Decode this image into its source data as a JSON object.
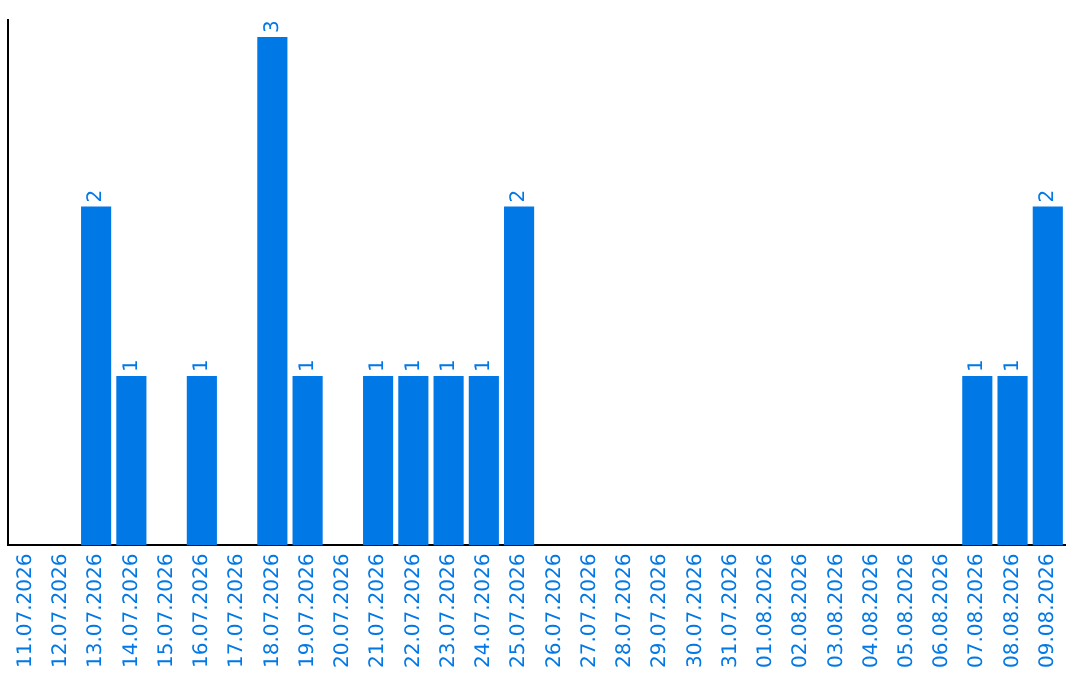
{
  "chart_data": {
    "type": "bar",
    "categories": [
      "11.07.2026",
      "12.07.2026",
      "13.07.2026",
      "14.07.2026",
      "15.07.2026",
      "16.07.2026",
      "17.07.2026",
      "18.07.2026",
      "19.07.2026",
      "20.07.2026",
      "21.07.2026",
      "22.07.2026",
      "23.07.2026",
      "24.07.2026",
      "25.07.2026",
      "26.07.2026",
      "27.07.2026",
      "28.07.2026",
      "29.07.2026",
      "30.07.2026",
      "31.07.2026",
      "01.08.2026",
      "02.08.2026",
      "03.08.2026",
      "04.08.2026",
      "05.08.2026",
      "06.08.2026",
      "07.08.2026",
      "08.08.2026",
      "09.08.2026"
    ],
    "values": [
      0,
      0,
      2,
      1,
      0,
      1,
      0,
      3,
      1,
      0,
      1,
      1,
      1,
      1,
      2,
      0,
      0,
      0,
      0,
      0,
      0,
      0,
      0,
      0,
      0,
      0,
      0,
      1,
      1,
      2
    ],
    "value_labels": [
      null,
      null,
      "2",
      "1",
      null,
      "1",
      null,
      "3",
      "1",
      null,
      "1",
      "1",
      "1",
      "1",
      "2",
      null,
      null,
      null,
      null,
      null,
      null,
      null,
      null,
      null,
      null,
      null,
      null,
      "1",
      "1",
      "2"
    ],
    "color": "#0078e6",
    "ylim": [
      0,
      3.1
    ],
    "tick_labels": "x",
    "grid": false,
    "legend": false
  }
}
